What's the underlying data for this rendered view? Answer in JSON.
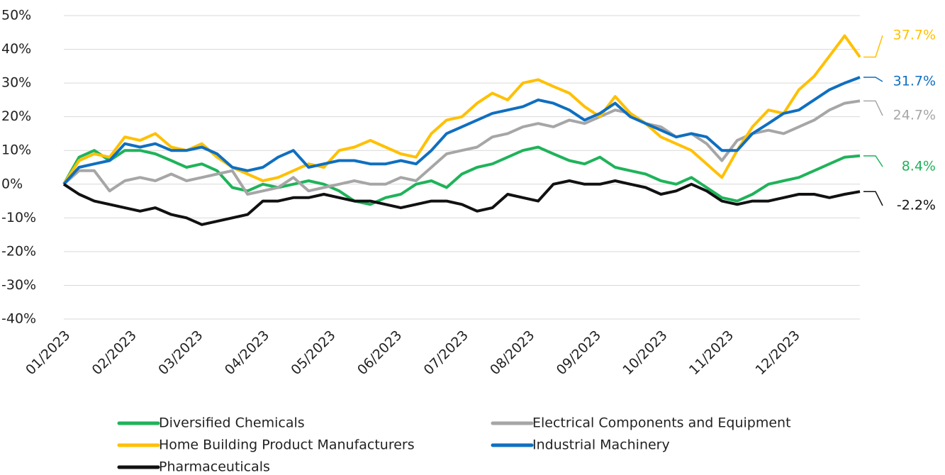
{
  "chart_data": {
    "type": "line",
    "x": [
      0,
      0.23,
      0.46,
      0.69,
      0.92,
      1.15,
      1.38,
      1.62,
      1.85,
      2.08,
      2.31,
      2.54,
      2.77,
      3.0,
      3.23,
      3.46,
      3.69,
      3.92,
      4.15,
      4.38,
      4.62,
      4.85,
      5.08,
      5.31,
      5.54,
      5.77,
      6.0,
      6.23,
      6.46,
      6.69,
      6.92,
      7.15,
      7.38,
      7.62,
      7.85,
      8.08,
      8.31,
      8.54,
      8.77,
      9.0,
      9.23,
      9.46,
      9.69,
      9.92,
      10.15,
      10.38,
      10.62,
      10.85,
      11.08,
      11.31,
      11.54,
      11.77,
      12.0
    ],
    "xlim": [
      0,
      12
    ],
    "xticks": [
      {
        "value": 0,
        "label": "01/2023"
      },
      {
        "value": 1,
        "label": "02/2023"
      },
      {
        "value": 2,
        "label": "03/2023"
      },
      {
        "value": 3,
        "label": "04/2023"
      },
      {
        "value": 4,
        "label": "05/2023"
      },
      {
        "value": 5,
        "label": "06/2023"
      },
      {
        "value": 6,
        "label": "07/2023"
      },
      {
        "value": 7,
        "label": "08/2023"
      },
      {
        "value": 8,
        "label": "09/2023"
      },
      {
        "value": 9,
        "label": "10/2023"
      },
      {
        "value": 10,
        "label": "11/2023"
      },
      {
        "value": 11,
        "label": "12/2023"
      }
    ],
    "ylim": [
      -40,
      50
    ],
    "yticks": [
      {
        "value": -40,
        "label": "-40%"
      },
      {
        "value": -30,
        "label": "-30%"
      },
      {
        "value": -20,
        "label": "-20%"
      },
      {
        "value": -10,
        "label": "-10%"
      },
      {
        "value": 0,
        "label": "0%"
      },
      {
        "value": 10,
        "label": "10%"
      },
      {
        "value": 20,
        "label": "20%"
      },
      {
        "value": 30,
        "label": "30%"
      },
      {
        "value": 40,
        "label": "40%"
      },
      {
        "value": 50,
        "label": "50%"
      }
    ],
    "grid": true,
    "series": [
      {
        "name": "Diversified Chemicals",
        "color": "#1fb35a",
        "end_label": "8.4%",
        "values": [
          0,
          8,
          10,
          7,
          10,
          10,
          9,
          7,
          5,
          6,
          4,
          -1,
          -2,
          0,
          -1,
          0,
          1,
          0,
          -2,
          -5,
          -6,
          -4,
          -3,
          0,
          1,
          -1,
          3,
          5,
          6,
          8,
          10,
          11,
          9,
          7,
          6,
          8,
          5,
          4,
          3,
          1,
          0,
          2,
          -1,
          -4,
          -5,
          -3,
          0,
          1,
          2,
          4,
          6,
          8,
          8.4
        ]
      },
      {
        "name": "Electrical Components and Equipment",
        "color": "#a6a6a6",
        "end_label": "24.7%",
        "values": [
          0,
          4,
          4,
          -2,
          1,
          2,
          1,
          3,
          1,
          2,
          3,
          4,
          -3,
          -2,
          -1,
          2,
          -2,
          -1,
          0,
          1,
          0,
          0,
          2,
          1,
          5,
          9,
          10,
          11,
          14,
          15,
          17,
          18,
          17,
          19,
          18,
          20,
          22,
          21,
          18,
          17,
          14,
          15,
          12,
          7,
          13,
          15,
          16,
          15,
          17,
          19,
          22,
          24,
          24.7
        ]
      },
      {
        "name": "Home Building Product Manufacturers",
        "color": "#ffc000",
        "end_label": "37.7%",
        "values": [
          0,
          7,
          9,
          8,
          14,
          13,
          15,
          11,
          10,
          12,
          8,
          5,
          3,
          1,
          2,
          4,
          6,
          5,
          10,
          11,
          13,
          11,
          9,
          8,
          15,
          19,
          20,
          24,
          27,
          25,
          30,
          31,
          29,
          27,
          23,
          20,
          26,
          21,
          18,
          14,
          12,
          10,
          6,
          2,
          10,
          17,
          22,
          21,
          28,
          32,
          38,
          44,
          37.7
        ]
      },
      {
        "name": "Industrial Machinery",
        "color": "#0f6fc0",
        "end_label": "31.7%",
        "values": [
          0,
          5,
          6,
          7,
          12,
          11,
          12,
          10,
          10,
          11,
          9,
          5,
          4,
          5,
          8,
          10,
          5,
          6,
          7,
          7,
          6,
          6,
          7,
          6,
          10,
          15,
          17,
          19,
          21,
          22,
          23,
          25,
          24,
          22,
          19,
          21,
          24,
          20,
          18,
          16,
          14,
          15,
          14,
          10,
          10,
          15,
          18,
          21,
          22,
          25,
          28,
          30,
          31.7
        ]
      },
      {
        "name": "Pharmaceuticals",
        "color": "#111111",
        "end_label": "-2.2%",
        "values": [
          0,
          -3,
          -5,
          -6,
          -7,
          -8,
          -7,
          -9,
          -10,
          -12,
          -11,
          -10,
          -9,
          -5,
          -5,
          -4,
          -4,
          -3,
          -4,
          -5,
          -5,
          -6,
          -7,
          -6,
          -5,
          -5,
          -6,
          -8,
          -7,
          -3,
          -4,
          -5,
          0,
          1,
          0,
          0,
          1,
          0,
          -1,
          -3,
          -2,
          0,
          -2,
          -5,
          -6,
          -5,
          -5,
          -4,
          -3,
          -3,
          -4,
          -3,
          -2.2
        ]
      }
    ]
  }
}
